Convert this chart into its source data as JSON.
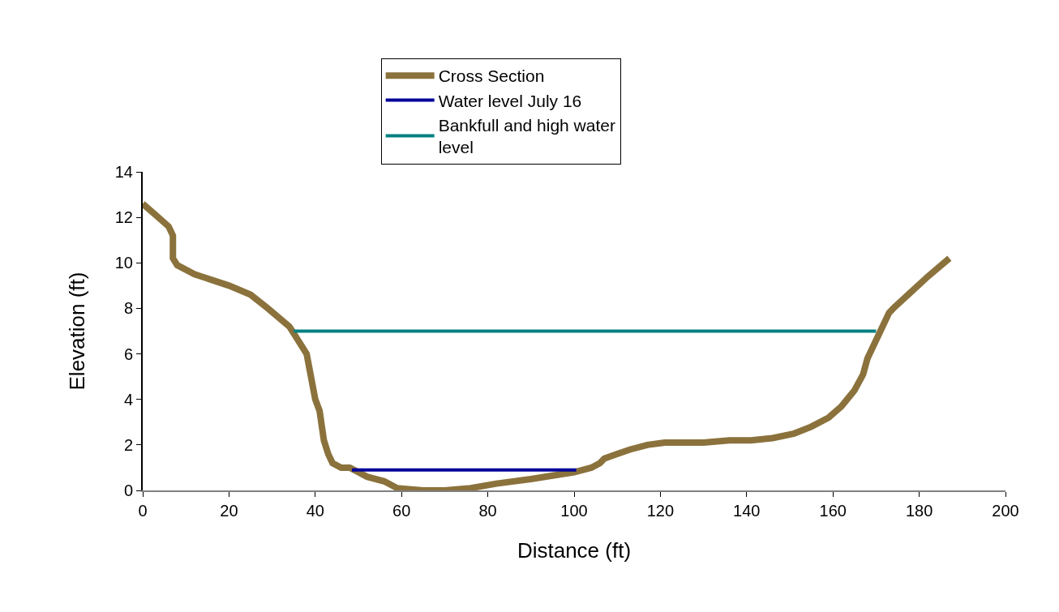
{
  "chart_data": {
    "type": "line",
    "xlabel": "Distance (ft)",
    "ylabel": "Elevation (ft)",
    "xlim": [
      0,
      200
    ],
    "xticks": [
      0,
      20,
      40,
      60,
      80,
      100,
      120,
      140,
      160,
      180,
      200
    ],
    "ylim": [
      0,
      14
    ],
    "yticks": [
      0,
      2,
      4,
      6,
      8,
      10,
      12,
      14
    ],
    "legend": "top",
    "marker": "none",
    "line_style": "solid",
    "series": [
      {
        "name": "Cross Section",
        "color": "#8b723c",
        "x": [
          0,
          3,
          6,
          7,
          7,
          8,
          12,
          20,
          25,
          29,
          34,
          36,
          38,
          40,
          41,
          42,
          43,
          44,
          46,
          48,
          50,
          52,
          56,
          59,
          65,
          70,
          76,
          82,
          90,
          100,
          104,
          106,
          107,
          110,
          113,
          117,
          121,
          130,
          136,
          141,
          146,
          151,
          155,
          159,
          162,
          165,
          167,
          168,
          169,
          170,
          172,
          173,
          174,
          178,
          182,
          187
        ],
        "values": [
          12.6,
          12.1,
          11.6,
          11.2,
          10.2,
          9.9,
          9.5,
          9.0,
          8.6,
          8.0,
          7.2,
          6.6,
          6.0,
          4.0,
          3.5,
          2.2,
          1.6,
          1.2,
          1.0,
          1.0,
          0.8,
          0.6,
          0.4,
          0.1,
          0,
          0,
          0.1,
          0.3,
          0.5,
          0.8,
          1.0,
          1.2,
          1.4,
          1.6,
          1.8,
          2.0,
          2.1,
          2.1,
          2.2,
          2.2,
          2.3,
          2.5,
          2.8,
          3.2,
          3.7,
          4.4,
          5.1,
          5.8,
          6.2,
          6.6,
          7.4,
          7.8,
          8.0,
          8.7,
          9.4,
          10.2
        ]
      },
      {
        "name": "Water level July 16",
        "color": "#000099",
        "x": [
          48.5,
          100.5
        ],
        "values": [
          0.9,
          0.9
        ]
      },
      {
        "name": "Bankfull and high water level",
        "color": "#008080",
        "x": [
          35,
          170
        ],
        "values": [
          7,
          7
        ]
      }
    ]
  }
}
